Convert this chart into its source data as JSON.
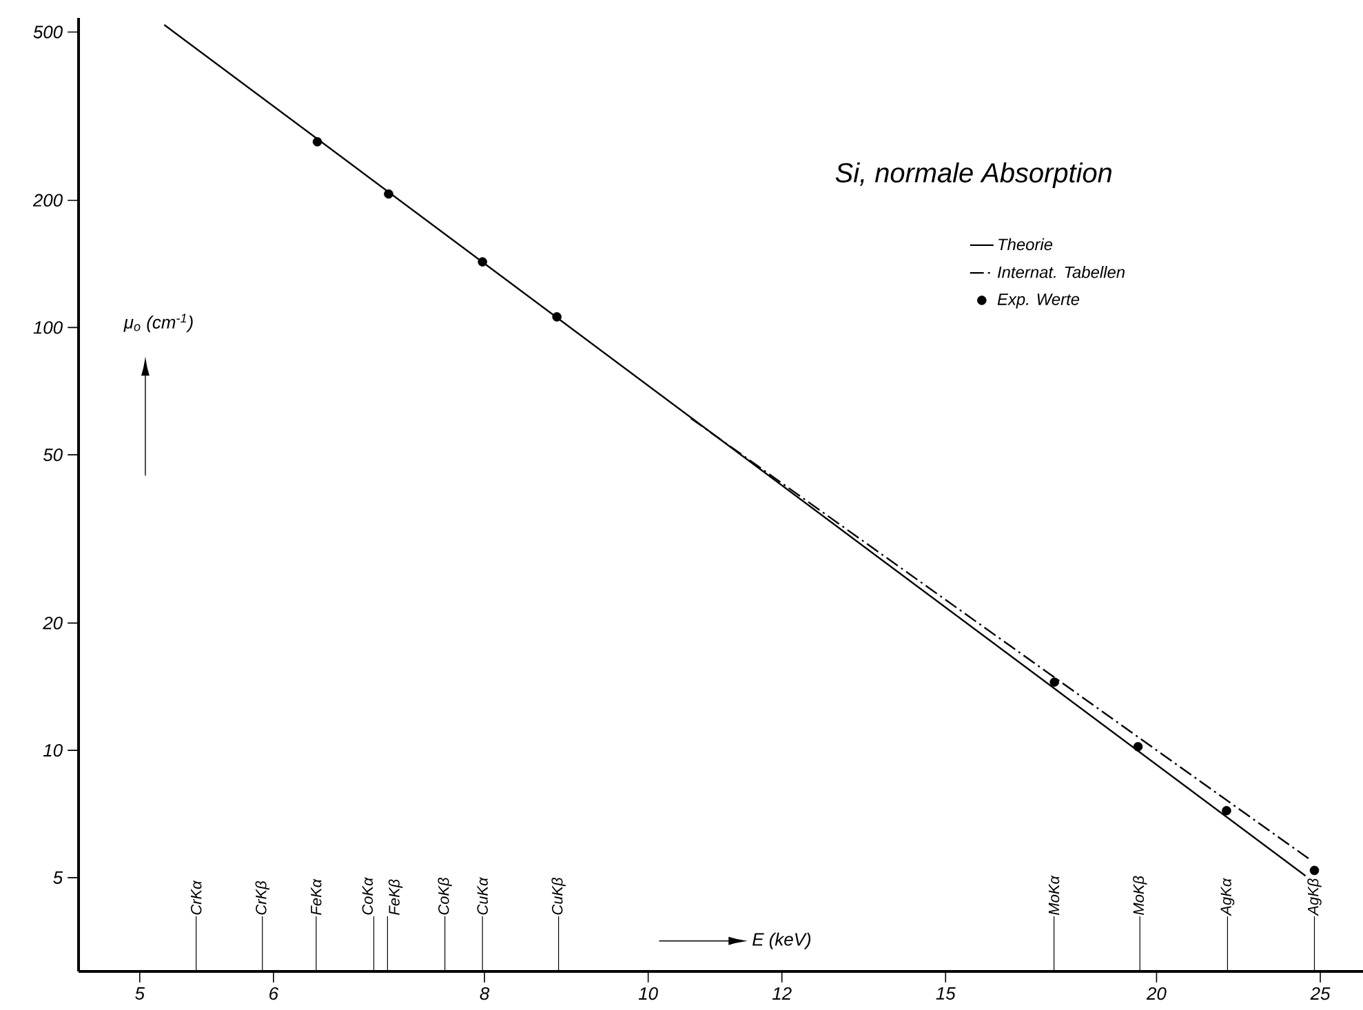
{
  "chart_data": {
    "type": "line",
    "title": "Si, normale Absorption",
    "xlabel": "E (keV)",
    "ylabel": "μ$_{o}$ (cm$^{-1}$)",
    "log": "xy",
    "xlim": [
      4.6,
      26.5
    ],
    "ylim": [
      3,
      540
    ],
    "xticks": [
      5,
      6,
      8,
      10,
      12,
      15,
      20,
      25
    ],
    "yticks": [
      5,
      10,
      20,
      50,
      100,
      200,
      500
    ],
    "grid": false,
    "legend": "top right",
    "series": [
      {
        "name": "Theorie",
        "color": "#000000",
        "line_style": "solid",
        "marker": "none",
        "x": [
          5.17,
          24.5
        ],
        "values": [
          520,
          5.05
        ]
      },
      {
        "name": "Internat. Tabellen",
        "color": "#000000",
        "line_style": "dashdot",
        "marker": "none",
        "x": [
          10.6,
          24.6
        ],
        "values": [
          61,
          5.55
        ]
      },
      {
        "name": "Exp. Werte",
        "type": "scatter",
        "color": "#000000",
        "marker": "circle",
        "x": [
          6.37,
          7.02,
          7.98,
          8.83,
          17.4,
          19.5,
          22.0,
          24.8
        ],
        "values": [
          275,
          207,
          143,
          106,
          14.5,
          10.2,
          7.2,
          5.2
        ]
      }
    ],
    "ref_lines": [
      {
        "axis": "x",
        "value": 5.4,
        "label": "CrKα"
      },
      {
        "axis": "x",
        "value": 5.91,
        "label": "CrKβ"
      },
      {
        "axis": "x",
        "value": 6.36,
        "label": "FeKα"
      },
      {
        "axis": "x",
        "value": 6.88,
        "label": "CoKα"
      },
      {
        "axis": "x",
        "value": 7.01,
        "label": "FeKβ"
      },
      {
        "axis": "x",
        "value": 7.58,
        "label": "CoKβ"
      },
      {
        "axis": "x",
        "value": 7.98,
        "label": "CuKα"
      },
      {
        "axis": "x",
        "value": 8.85,
        "label": "CuKβ"
      },
      {
        "axis": "x",
        "value": 17.39,
        "label": "MoKα"
      },
      {
        "axis": "x",
        "value": 19.55,
        "label": "MoKβ"
      },
      {
        "axis": "x",
        "value": 22.03,
        "label": "AgKα"
      },
      {
        "axis": "x",
        "value": 24.8,
        "label": "AgKβ"
      }
    ]
  }
}
